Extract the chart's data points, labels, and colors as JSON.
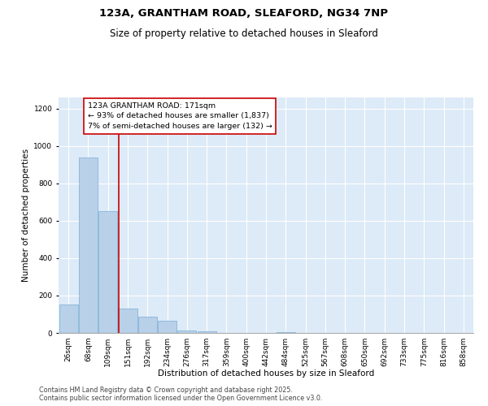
{
  "title": "123A, GRANTHAM ROAD, SLEAFORD, NG34 7NP",
  "subtitle": "Size of property relative to detached houses in Sleaford",
  "xlabel": "Distribution of detached houses by size in Sleaford",
  "ylabel": "Number of detached properties",
  "footer_line1": "Contains HM Land Registry data © Crown copyright and database right 2025.",
  "footer_line2": "Contains public sector information licensed under the Open Government Licence v3.0.",
  "categories": [
    "26sqm",
    "68sqm",
    "109sqm",
    "151sqm",
    "192sqm",
    "234sqm",
    "276sqm",
    "317sqm",
    "359sqm",
    "400sqm",
    "442sqm",
    "484sqm",
    "525sqm",
    "567sqm",
    "608sqm",
    "650sqm",
    "692sqm",
    "733sqm",
    "775sqm",
    "816sqm",
    "858sqm"
  ],
  "values": [
    150,
    940,
    650,
    130,
    85,
    65,
    15,
    8,
    0,
    0,
    0,
    5,
    0,
    0,
    0,
    0,
    0,
    0,
    0,
    0,
    0
  ],
  "bar_color": "#b8d0e8",
  "bar_edge_color": "#7aadd4",
  "bg_color": "#ddeaf7",
  "grid_color": "#ffffff",
  "vline_color": "#cc0000",
  "vline_pos": 2.55,
  "annotation_line1": "123A GRANTHAM ROAD: 171sqm",
  "annotation_line2": "← 93% of detached houses are smaller (1,837)",
  "annotation_line3": "7% of semi-detached houses are larger (132) →",
  "annotation_box_color": "#ffffff",
  "annotation_box_edge": "#cc0000",
  "ylim": [
    0,
    1260
  ],
  "yticks": [
    0,
    200,
    400,
    600,
    800,
    1000,
    1200
  ],
  "title_fontsize": 9.5,
  "subtitle_fontsize": 8.5,
  "axis_label_fontsize": 7.5,
  "tick_fontsize": 6.5,
  "annotation_fontsize": 6.8,
  "footer_fontsize": 5.8
}
